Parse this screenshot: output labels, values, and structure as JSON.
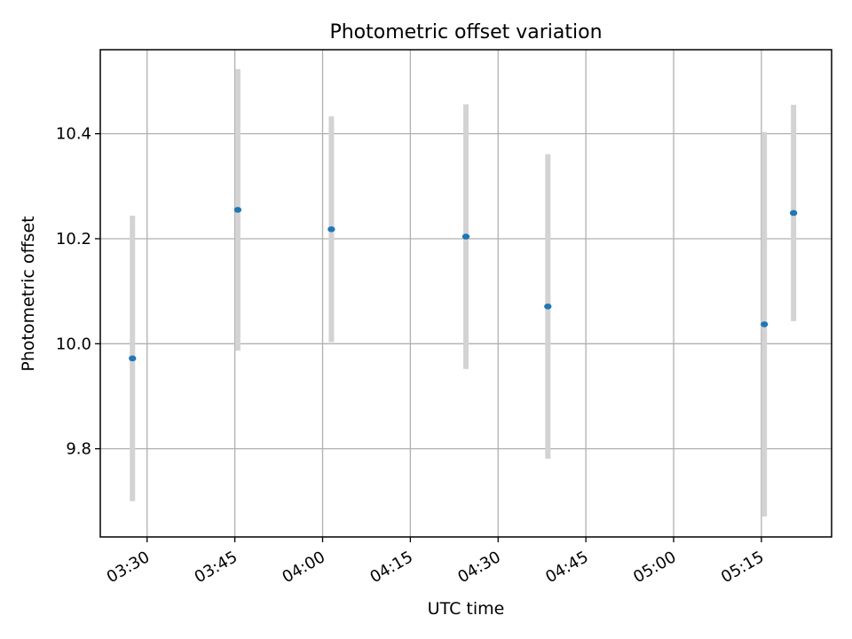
{
  "chart_data": {
    "type": "scatter",
    "title": "Photometric offset variation",
    "xlabel": "UTC time",
    "ylabel": "Photometric offset",
    "x_axis": {
      "type": "time",
      "ticks": [
        "03:30",
        "03:45",
        "04:00",
        "04:15",
        "04:30",
        "04:45",
        "05:00",
        "05:15"
      ],
      "range": [
        "03:22:00",
        "05:27:00"
      ]
    },
    "y_axis": {
      "ticks": [
        "9.8",
        "10.0",
        "10.2",
        "10.4"
      ],
      "range": [
        9.632,
        10.56
      ]
    },
    "grid": true,
    "series": [
      {
        "marker_color": "#1f77b4",
        "errorbar_color": "#d3d3d3",
        "points": [
          {
            "time": "03:27:30",
            "y": 9.972,
            "yerr": 0.272
          },
          {
            "time": "03:45:30",
            "y": 10.255,
            "yerr": 0.268
          },
          {
            "time": "04:01:30",
            "y": 10.218,
            "yerr": 0.215
          },
          {
            "time": "04:24:30",
            "y": 10.204,
            "yerr": 0.252
          },
          {
            "time": "04:38:30",
            "y": 10.071,
            "yerr": 0.29
          },
          {
            "time": "05:15:30",
            "y": 10.037,
            "yerr": 0.366
          },
          {
            "time": "05:20:30",
            "y": 10.249,
            "yerr": 0.206
          }
        ]
      }
    ]
  }
}
